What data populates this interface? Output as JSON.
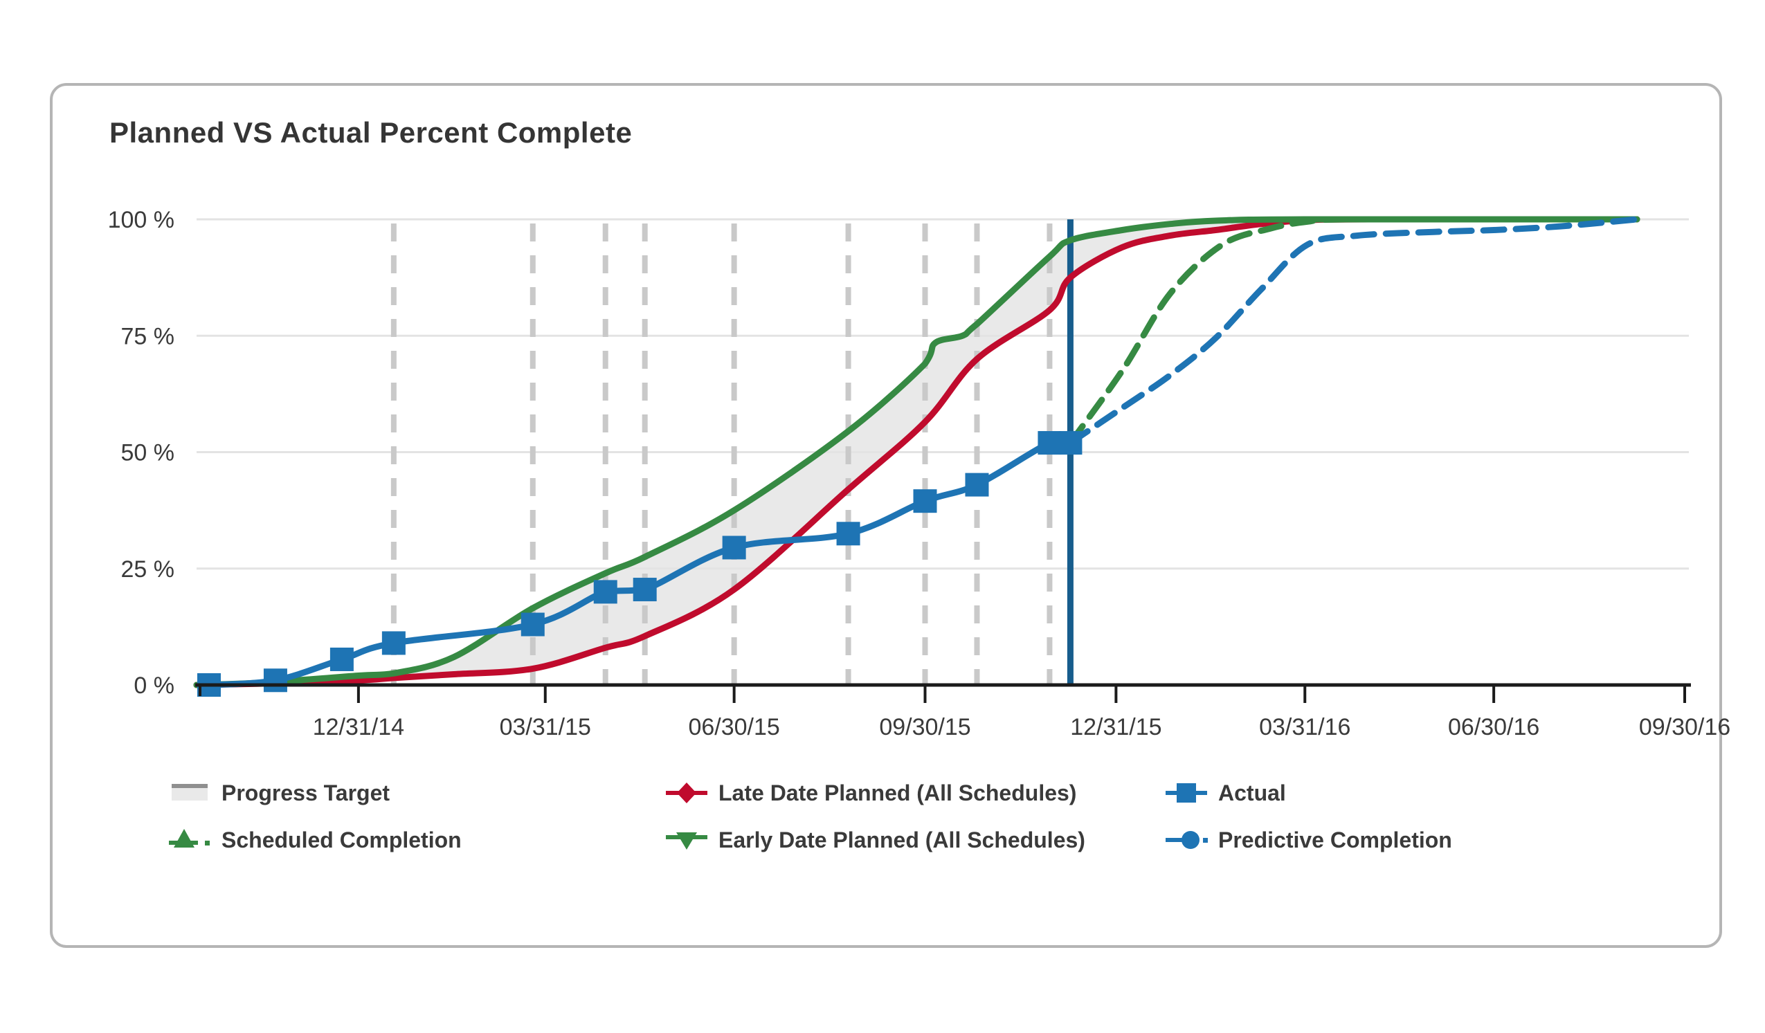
{
  "title": "Planned VS Actual Percent Complete",
  "colors": {
    "blue": "#1E74B4",
    "data_date_blue": "#175D8D",
    "green": "#368A43",
    "red": "#C00B2D",
    "band_fill": "#E9E9E9",
    "band_edge": "#8F8F8F",
    "h_grid": "#E3E3E3",
    "v_dash": "#C9C9C9",
    "axis": "#1B1B1B",
    "text": "#3A3A3A",
    "card_border": "#B5B5B5"
  },
  "chart_data": {
    "type": "line",
    "title": "Planned VS Actual Percent Complete",
    "y_unit": "%",
    "ylim": [
      0,
      100
    ],
    "grid": "horizontal-and-status-dashed",
    "legend_position": "bottom",
    "y_ticks": [
      {
        "label": "100 %",
        "value": 100
      },
      {
        "label": "75 %",
        "value": 75
      },
      {
        "label": "50 %",
        "value": 50
      },
      {
        "label": "25 %",
        "value": 25
      },
      {
        "label": "0 %",
        "value": 0
      }
    ],
    "x_range": [
      "2014-10-14",
      "2016-10-02"
    ],
    "x_ticks": [
      {
        "label": "12/31/14",
        "date": "2014-12-31"
      },
      {
        "label": "03/31/15",
        "date": "2015-03-31"
      },
      {
        "label": "06/30/15",
        "date": "2015-06-30"
      },
      {
        "label": "09/30/15",
        "date": "2015-09-30"
      },
      {
        "label": "12/31/15",
        "date": "2015-12-31"
      },
      {
        "label": "03/31/16",
        "date": "2016-03-31"
      },
      {
        "label": "06/30/16",
        "date": "2016-06-30"
      },
      {
        "label": "09/30/16",
        "date": "2016-09-30"
      }
    ],
    "data_date": "2015-12-09",
    "status_gridlines": [
      "2015-01-17",
      "2015-03-25",
      "2015-04-29",
      "2015-05-18",
      "2015-06-30",
      "2015-08-24",
      "2015-09-30",
      "2015-10-25",
      "2015-11-29"
    ],
    "series": [
      {
        "name": "Late Date Planned (All Schedules)",
        "style": "solid",
        "color_key": "red",
        "points": [
          {
            "d": "2014-10-14",
            "v": 0
          },
          {
            "d": "2014-11-15",
            "v": 0.3
          },
          {
            "d": "2014-12-31",
            "v": 1
          },
          {
            "d": "2015-01-17",
            "v": 1.5
          },
          {
            "d": "2015-02-15",
            "v": 2.3
          },
          {
            "d": "2015-03-25",
            "v": 3.5
          },
          {
            "d": "2015-04-29",
            "v": 8
          },
          {
            "d": "2015-05-18",
            "v": 10.5
          },
          {
            "d": "2015-06-30",
            "v": 20.5
          },
          {
            "d": "2015-08-24",
            "v": 42
          },
          {
            "d": "2015-09-30",
            "v": 56.5
          },
          {
            "d": "2015-10-25",
            "v": 70
          },
          {
            "d": "2015-11-29",
            "v": 80.5
          },
          {
            "d": "2015-12-09",
            "v": 87.5
          },
          {
            "d": "2016-01-03",
            "v": 94
          },
          {
            "d": "2016-01-26",
            "v": 96.5
          },
          {
            "d": "2016-02-17",
            "v": 97.7
          },
          {
            "d": "2016-03-10",
            "v": 99
          },
          {
            "d": "2016-04-01",
            "v": 99.8
          },
          {
            "d": "2016-05-01",
            "v": 100
          },
          {
            "d": "2016-09-07",
            "v": 100
          }
        ]
      },
      {
        "name": "Early Date Planned (All Schedules)",
        "style": "solid",
        "color_key": "green",
        "points": [
          {
            "d": "2014-10-14",
            "v": 0
          },
          {
            "d": "2014-11-15",
            "v": 0.5
          },
          {
            "d": "2014-12-31",
            "v": 2
          },
          {
            "d": "2015-01-17",
            "v": 2.5
          },
          {
            "d": "2015-02-15",
            "v": 6
          },
          {
            "d": "2015-03-25",
            "v": 16.5
          },
          {
            "d": "2015-04-29",
            "v": 24
          },
          {
            "d": "2015-05-18",
            "v": 27.5
          },
          {
            "d": "2015-06-30",
            "v": 37.5
          },
          {
            "d": "2015-08-24",
            "v": 54.5
          },
          {
            "d": "2015-09-30",
            "v": 69
          },
          {
            "d": "2015-10-05",
            "v": 73.5
          },
          {
            "d": "2015-10-18",
            "v": 75
          },
          {
            "d": "2015-10-25",
            "v": 77.5
          },
          {
            "d": "2015-11-29",
            "v": 92
          },
          {
            "d": "2015-12-09",
            "v": 95.5
          },
          {
            "d": "2016-01-03",
            "v": 97.7
          },
          {
            "d": "2016-01-26",
            "v": 99
          },
          {
            "d": "2016-02-17",
            "v": 99.7
          },
          {
            "d": "2016-03-31",
            "v": 100
          },
          {
            "d": "2016-09-07",
            "v": 100
          }
        ]
      },
      {
        "name": "Actual",
        "style": "solid",
        "color_key": "blue",
        "marker": "square",
        "points": [
          {
            "d": "2014-10-20",
            "v": 0
          },
          {
            "d": "2014-11-21",
            "v": 1
          },
          {
            "d": "2014-12-23",
            "v": 5.5
          },
          {
            "d": "2015-01-17",
            "v": 9
          },
          {
            "d": "2015-03-25",
            "v": 13
          },
          {
            "d": "2015-04-29",
            "v": 20
          },
          {
            "d": "2015-05-18",
            "v": 20.5
          },
          {
            "d": "2015-06-30",
            "v": 29.5
          },
          {
            "d": "2015-08-24",
            "v": 32.5
          },
          {
            "d": "2015-09-30",
            "v": 39.5
          },
          {
            "d": "2015-10-25",
            "v": 43
          },
          {
            "d": "2015-11-29",
            "v": 52
          },
          {
            "d": "2015-12-09",
            "v": 52
          }
        ]
      },
      {
        "name": "Scheduled Completion",
        "style": "dashed",
        "color_key": "green",
        "points": [
          {
            "d": "2015-12-09",
            "v": 52
          },
          {
            "d": "2016-01-03",
            "v": 67.5
          },
          {
            "d": "2016-01-26",
            "v": 84
          },
          {
            "d": "2016-02-20",
            "v": 94.5
          },
          {
            "d": "2016-03-14",
            "v": 98
          },
          {
            "d": "2016-04-01",
            "v": 99.5
          },
          {
            "d": "2016-04-20",
            "v": 100
          },
          {
            "d": "2016-09-07",
            "v": 100
          }
        ]
      },
      {
        "name": "Predictive Completion",
        "style": "dashed",
        "color_key": "blue",
        "points": [
          {
            "d": "2015-12-09",
            "v": 52
          },
          {
            "d": "2016-01-03",
            "v": 59.5
          },
          {
            "d": "2016-01-26",
            "v": 66.5
          },
          {
            "d": "2016-02-17",
            "v": 74.5
          },
          {
            "d": "2016-03-10",
            "v": 85
          },
          {
            "d": "2016-04-01",
            "v": 94.5
          },
          {
            "d": "2016-04-25",
            "v": 96.5
          },
          {
            "d": "2016-06-01",
            "v": 97.3
          },
          {
            "d": "2016-06-30",
            "v": 97.7
          },
          {
            "d": "2016-08-01",
            "v": 98.5
          },
          {
            "d": "2016-09-07",
            "v": 100
          }
        ]
      }
    ],
    "band": {
      "name": "Progress Target",
      "upper": "Early Date Planned (All Schedules)",
      "lower": "Late Date Planned (All Schedules)"
    }
  },
  "legend": {
    "entries": [
      {
        "label": "Progress Target",
        "swatch": "band"
      },
      {
        "label": "Late Date Planned (All Schedules)",
        "swatch": "red-diamond"
      },
      {
        "label": "Actual",
        "swatch": "blue-square"
      },
      {
        "label": "Scheduled Completion",
        "swatch": "green-dash-triangle-up"
      },
      {
        "label": "Early Date Planned (All Schedules)",
        "swatch": "green-triangle-down"
      },
      {
        "label": "Predictive Completion",
        "swatch": "blue-dash-circle"
      }
    ]
  }
}
